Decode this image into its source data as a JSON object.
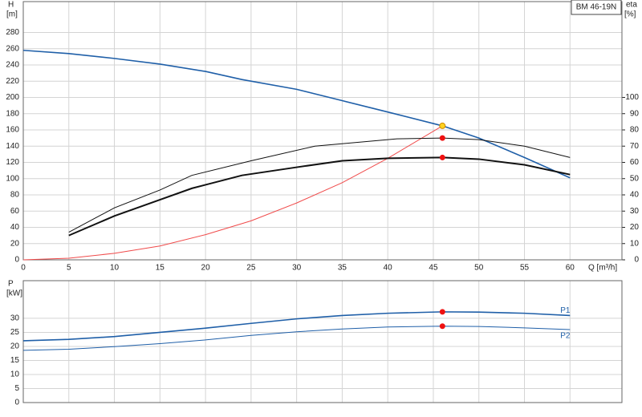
{
  "chart_data": [
    {
      "type": "line",
      "annotation": "BM 46-19N",
      "ylabel": "H",
      "yunit": "[m]",
      "y2label": "eta",
      "y2unit": "[%]",
      "xlabel": "Q [m³/h]",
      "xlim": [
        0,
        65.7
      ],
      "xticks": [
        0,
        5,
        10,
        15,
        20,
        25,
        30,
        35,
        40,
        45,
        50,
        55,
        60
      ],
      "ylim": [
        0,
        318
      ],
      "yticks": [
        0,
        20,
        40,
        60,
        80,
        100,
        120,
        140,
        160,
        180,
        200,
        220,
        240,
        260,
        280
      ],
      "y2lim": [
        0,
        159
      ],
      "y2ticks": [
        0,
        10,
        20,
        30,
        40,
        50,
        60,
        70,
        80,
        90,
        100
      ],
      "grid": true,
      "show_xtick_labels": true,
      "series": [
        {
          "color": "#1f5fa8",
          "width": 1.6,
          "x": [
            0,
            5,
            10,
            15,
            20,
            24,
            30,
            35,
            40,
            46,
            50,
            55,
            60
          ],
          "values": [
            258,
            254,
            248,
            241,
            232,
            222,
            210,
            196,
            182,
            165,
            150,
            126,
            101
          ]
        },
        {
          "color": "#f04a4a",
          "width": 1,
          "x": [
            0,
            5,
            10,
            15,
            20,
            25,
            30,
            35,
            40,
            46
          ],
          "values": [
            0,
            2,
            8,
            17,
            31,
            48,
            70,
            95,
            125,
            165
          ]
        },
        {
          "color": "#111111",
          "width": 1,
          "axis": "y2",
          "x": [
            5,
            10,
            15,
            18.5,
            25,
            32,
            41,
            46,
            50,
            55,
            60
          ],
          "values": [
            17,
            32,
            43,
            52,
            61,
            70,
            74.5,
            75,
            74,
            70,
            63
          ]
        },
        {
          "color": "#111111",
          "width": 2,
          "axis": "y2",
          "x": [
            5,
            10,
            15,
            18.5,
            24,
            30,
            35,
            40,
            46,
            50,
            55,
            60
          ],
          "values": [
            15,
            27,
            37,
            44,
            52,
            57,
            61,
            62.5,
            63,
            62,
            58.5,
            52.5
          ]
        }
      ],
      "points": [
        {
          "x": 46,
          "y": 165,
          "color": "#ffd21f"
        },
        {
          "x": 46,
          "y": 75,
          "axis": "y2",
          "color": "#ee1111"
        },
        {
          "x": 46,
          "y": 63,
          "axis": "y2",
          "color": "#ee1111"
        }
      ]
    },
    {
      "type": "line",
      "ylabel": "P",
      "yunit": "[kW]",
      "xlim": [
        0,
        65.7
      ],
      "xticks": [
        0,
        5,
        10,
        15,
        20,
        25,
        30,
        35,
        40,
        45,
        50,
        55,
        60
      ],
      "ylim": [
        0,
        43.4
      ],
      "yticks": [
        0,
        5,
        10,
        15,
        20,
        25,
        30
      ],
      "grid": true,
      "show_xtick_labels": false,
      "series": [
        {
          "name": "P1",
          "color": "#1f5fa8",
          "width": 1.6,
          "x": [
            0,
            5,
            10,
            15,
            20,
            25,
            30,
            35,
            40,
            46,
            50,
            55,
            60
          ],
          "values": [
            22,
            22.5,
            23.5,
            25,
            26.5,
            28.2,
            29.8,
            31,
            31.8,
            32.3,
            32.2,
            31.8,
            31
          ]
        },
        {
          "name": "P2",
          "color": "#1f5fa8",
          "width": 1,
          "x": [
            0,
            5,
            10,
            15,
            20,
            25,
            30,
            35,
            40,
            46,
            50,
            55,
            60
          ],
          "values": [
            18.6,
            19,
            19.9,
            21,
            22.3,
            23.9,
            25.2,
            26.2,
            26.9,
            27.2,
            27.1,
            26.6,
            26
          ]
        }
      ],
      "points": [
        {
          "x": 46,
          "y": 32.3,
          "color": "#ee1111"
        },
        {
          "x": 46,
          "y": 27.2,
          "color": "#ee1111"
        }
      ]
    }
  ]
}
